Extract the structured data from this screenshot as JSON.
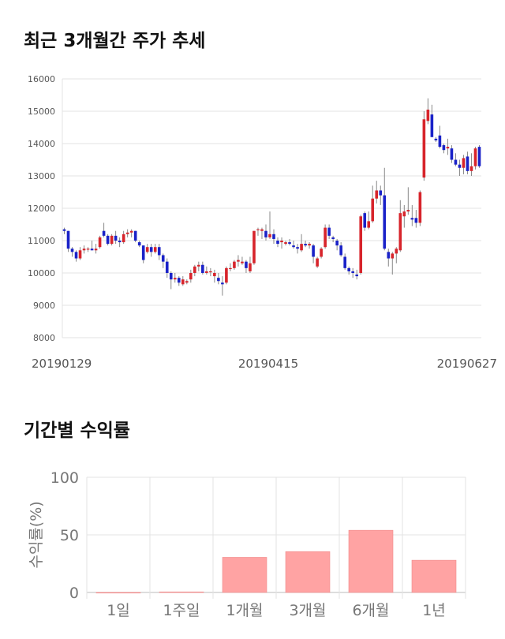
{
  "titles": {
    "price": "최근 3개월간 주가 추세",
    "returns": "기간별 수익률"
  },
  "colors": {
    "up": "#d7242b",
    "down": "#1a22c8",
    "bar": "#ffa3a3",
    "grid": "#e3e3e3"
  },
  "chart_data": [
    {
      "type": "candlestick",
      "title": "최근 3개월간 주가 추세",
      "ylim": [
        8000,
        16000
      ],
      "yticks": [
        8000,
        9000,
        10000,
        11000,
        12000,
        13000,
        14000,
        15000,
        16000
      ],
      "xtick_labels": [
        "20190129",
        "20190415",
        "20190627"
      ],
      "xtick_index": [
        0,
        52,
        104
      ],
      "grid": true,
      "ohlc": [
        [
          11350,
          11400,
          11200,
          11300
        ],
        [
          11300,
          11300,
          10650,
          10750
        ],
        [
          10750,
          10800,
          10500,
          10650
        ],
        [
          10650,
          10700,
          10350,
          10450
        ],
        [
          10450,
          10800,
          10400,
          10700
        ],
        [
          10700,
          10850,
          10600,
          10750
        ],
        [
          10750,
          10800,
          10650,
          10750
        ],
        [
          10750,
          11000,
          10700,
          10700
        ],
        [
          10700,
          10900,
          10600,
          10750
        ],
        [
          10800,
          11150,
          10750,
          11100
        ],
        [
          11300,
          11550,
          11100,
          11150
        ],
        [
          11150,
          11200,
          10850,
          10900
        ],
        [
          10900,
          11200,
          10850,
          11150
        ],
        [
          11150,
          11300,
          10900,
          11000
        ],
        [
          11000,
          11100,
          10800,
          10950
        ],
        [
          10950,
          11300,
          10900,
          11200
        ],
        [
          11200,
          11350,
          11100,
          11250
        ],
        [
          11250,
          11350,
          11100,
          11300
        ],
        [
          11300,
          11300,
          10950,
          11000
        ],
        [
          10950,
          11000,
          10800,
          10850
        ],
        [
          10850,
          10850,
          10300,
          10400
        ],
        [
          10650,
          10900,
          10600,
          10800
        ],
        [
          10800,
          10900,
          10500,
          10650
        ],
        [
          10650,
          10900,
          10600,
          10800
        ],
        [
          10800,
          10900,
          10400,
          10550
        ],
        [
          10550,
          10600,
          10150,
          10350
        ],
        [
          10350,
          10450,
          9850,
          10000
        ],
        [
          10000,
          10050,
          9500,
          9800
        ],
        [
          9800,
          10000,
          9700,
          9850
        ],
        [
          9850,
          9900,
          9600,
          9700
        ],
        [
          9650,
          9900,
          9600,
          9800
        ],
        [
          9700,
          9800,
          9650,
          9750
        ],
        [
          9800,
          10100,
          9700,
          10000
        ],
        [
          10000,
          10250,
          9900,
          10200
        ],
        [
          10200,
          10350,
          10050,
          10250
        ],
        [
          10250,
          10350,
          9950,
          10000
        ],
        [
          10000,
          10200,
          9950,
          10050
        ],
        [
          10050,
          10150,
          9900,
          10050
        ],
        [
          9900,
          10100,
          9700,
          10000
        ],
        [
          9850,
          10000,
          9650,
          9750
        ],
        [
          9700,
          9900,
          9300,
          9650
        ],
        [
          9700,
          10200,
          9650,
          10150
        ],
        [
          10150,
          10300,
          10050,
          10150
        ],
        [
          10150,
          10400,
          10100,
          10350
        ],
        [
          10350,
          10550,
          10200,
          10400
        ],
        [
          10300,
          10500,
          10250,
          10350
        ],
        [
          10350,
          10400,
          10000,
          10150
        ],
        [
          10050,
          10500,
          10000,
          10300
        ],
        [
          10300,
          11300,
          10250,
          11300
        ],
        [
          11350,
          11400,
          11150,
          11350
        ],
        [
          11300,
          11400,
          11050,
          11350
        ],
        [
          11300,
          11500,
          11000,
          11100
        ],
        [
          11100,
          11900,
          11050,
          11200
        ],
        [
          11200,
          11350,
          10900,
          11050
        ],
        [
          11000,
          11100,
          10800,
          10900
        ],
        [
          10950,
          11100,
          10750,
          11000
        ],
        [
          10900,
          11000,
          10850,
          10950
        ],
        [
          10950,
          11050,
          10850,
          10900
        ],
        [
          10850,
          11000,
          10750,
          10800
        ],
        [
          10800,
          10900,
          10600,
          10750
        ],
        [
          10700,
          11200,
          10650,
          10900
        ],
        [
          10900,
          11000,
          10800,
          10850
        ],
        [
          10850,
          10950,
          10750,
          10900
        ],
        [
          10850,
          10900,
          10300,
          10500
        ],
        [
          10200,
          10500,
          10150,
          10450
        ],
        [
          10500,
          10800,
          10450,
          10750
        ],
        [
          10800,
          11500,
          10750,
          11400
        ],
        [
          11400,
          11500,
          11050,
          11150
        ],
        [
          11100,
          11150,
          10950,
          11050
        ],
        [
          11000,
          11050,
          10700,
          10850
        ],
        [
          10850,
          10950,
          10500,
          10550
        ],
        [
          10500,
          10600,
          10100,
          10150
        ],
        [
          10150,
          10200,
          9950,
          10050
        ],
        [
          10050,
          10150,
          9850,
          10000
        ],
        [
          9950,
          10100,
          9800,
          9900
        ],
        [
          10000,
          11800,
          9950,
          11750
        ],
        [
          11850,
          11900,
          11300,
          11400
        ],
        [
          11400,
          11900,
          11350,
          11600
        ],
        [
          11600,
          12700,
          11550,
          12300
        ],
        [
          12300,
          12850,
          12150,
          12550
        ],
        [
          12550,
          12700,
          12100,
          12400
        ],
        [
          12400,
          13250,
          10700,
          10750
        ],
        [
          10650,
          10750,
          10200,
          10450
        ],
        [
          10450,
          10650,
          9950,
          10600
        ],
        [
          10600,
          10800,
          10300,
          10750
        ],
        [
          10700,
          12250,
          10650,
          11850
        ],
        [
          11750,
          12100,
          11400,
          11900
        ],
        [
          11900,
          12650,
          11800,
          11950
        ],
        [
          11700,
          12100,
          11450,
          11650
        ],
        [
          11700,
          11950,
          11400,
          11550
        ],
        [
          11550,
          12550,
          11450,
          12500
        ],
        [
          12950,
          15000,
          12850,
          14750
        ],
        [
          14700,
          15400,
          14600,
          15050
        ],
        [
          14900,
          15200,
          14250,
          14200
        ],
        [
          14150,
          14200,
          14050,
          14100
        ],
        [
          14250,
          14550,
          13850,
          13900
        ],
        [
          13950,
          14000,
          13700,
          13800
        ],
        [
          13850,
          14150,
          13650,
          13900
        ],
        [
          13850,
          13950,
          13400,
          13500
        ],
        [
          13500,
          13700,
          13300,
          13350
        ],
        [
          13350,
          13500,
          13000,
          13250
        ],
        [
          13250,
          13650,
          13050,
          13550
        ],
        [
          13600,
          13750,
          13050,
          13150
        ],
        [
          13150,
          13700,
          13000,
          13300
        ],
        [
          13300,
          13900,
          13200,
          13850
        ],
        [
          13900,
          13950,
          13250,
          13300
        ]
      ]
    },
    {
      "type": "bar",
      "title": "기간별 수익률",
      "categories": [
        "1일",
        "1주일",
        "1개월",
        "3개월",
        "6개월",
        "1년"
      ],
      "values": [
        0,
        0.5,
        30.5,
        35.5,
        54,
        28
      ],
      "ylabel": "수익률(%)",
      "ylim": [
        0,
        100
      ],
      "yticks": [
        0,
        50,
        100
      ],
      "grid": true
    }
  ]
}
